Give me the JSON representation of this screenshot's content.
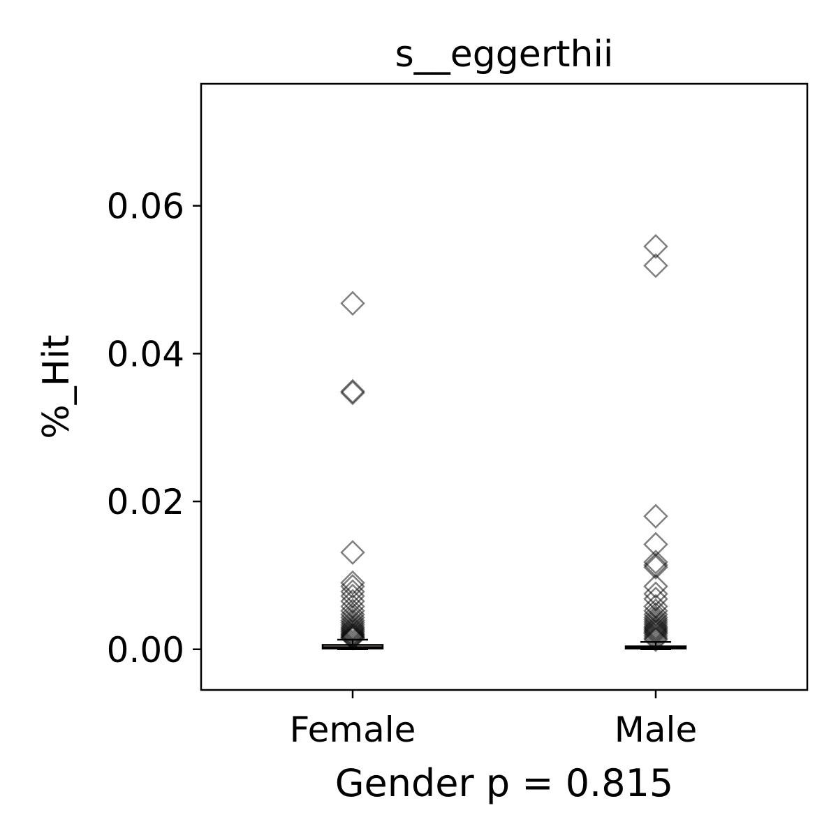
{
  "chart_data": {
    "type": "boxplot",
    "title": "s__eggerthii",
    "xlabel": "Gender p = 0.815",
    "ylabel": "%_Hit",
    "categories": [
      "Female",
      "Male"
    ],
    "ylim": [
      -0.0055,
      0.0765
    ],
    "yticks": [
      0.0,
      0.02,
      0.04,
      0.06
    ],
    "ytick_labels": [
      "0.00",
      "0.02",
      "0.04",
      "0.06"
    ],
    "grid": false,
    "boxes": [
      {
        "category": "Female",
        "q1": 0.0001,
        "median": 0.0003,
        "q3": 0.0006,
        "whisker_low": 0.0,
        "whisker_high": 0.0013
      },
      {
        "category": "Male",
        "q1": 0.0001,
        "median": 0.0002,
        "q3": 0.0004,
        "whisker_low": 0.0,
        "whisker_high": 0.001
      }
    ],
    "outliers": [
      {
        "category": "Female",
        "values": [
          0.0468,
          0.0349,
          0.0347,
          0.0131,
          0.009,
          0.0085,
          0.0078,
          0.0072,
          0.0065,
          0.0058,
          0.0052,
          0.0047,
          0.0043,
          0.0039,
          0.0036,
          0.0033,
          0.003,
          0.0028,
          0.0026,
          0.0024,
          0.0022,
          0.002,
          0.0019,
          0.0017,
          0.0016,
          0.0015
        ]
      },
      {
        "category": "Male",
        "values": [
          0.0545,
          0.0519,
          0.018,
          0.0142,
          0.0118,
          0.0114,
          0.0111,
          0.0085,
          0.0075,
          0.0068,
          0.0058,
          0.0052,
          0.0047,
          0.0043,
          0.004,
          0.0037,
          0.0034,
          0.0031,
          0.0029,
          0.0027,
          0.0025,
          0.0023,
          0.0021,
          0.0018,
          0.0015,
          0.0013
        ]
      }
    ],
    "colors": {
      "box_fill": "#f4c9b8",
      "marker": "#000000",
      "axis": "#000000"
    }
  }
}
